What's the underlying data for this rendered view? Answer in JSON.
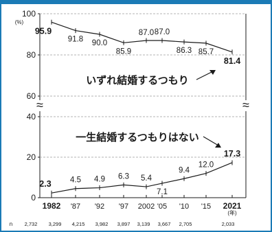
{
  "chart_data": {
    "type": "line",
    "ylabel": "(%)",
    "ylim": [
      0,
      100
    ],
    "axis_break": [
      47,
      57
    ],
    "y_ticks": [
      "0",
      "20",
      "40",
      "60",
      "80",
      "100"
    ],
    "categories": [
      "1982",
      "'87",
      "'92",
      "'97",
      "2002",
      "'05",
      "'10",
      "'15",
      "2021"
    ],
    "category_suffix_last": "(年)",
    "series": [
      {
        "name": "いずれ結婚するつもり",
        "values": [
          95.9,
          91.8,
          90.0,
          85.9,
          87.0,
          87.0,
          86.3,
          85.7,
          81.4
        ],
        "labels": [
          "95.9",
          "91.8",
          "90.0",
          "85.9",
          "87.0",
          "87.0",
          "86.3",
          "85.7",
          "81.4"
        ],
        "bold": [
          true,
          false,
          false,
          false,
          false,
          false,
          false,
          false,
          true
        ]
      },
      {
        "name": "一生結婚するつもりはない",
        "values": [
          2.3,
          4.5,
          4.9,
          6.3,
          5.4,
          7.1,
          9.4,
          12.0,
          17.3
        ],
        "labels": [
          "2.3",
          "4.5",
          "4.9",
          "6.3",
          "5.4",
          "7.1",
          "9.4",
          "12.0",
          "17.3"
        ],
        "bold": [
          true,
          false,
          false,
          false,
          false,
          false,
          false,
          false,
          true
        ]
      }
    ],
    "n_label": "n",
    "n_values": [
      "2,732",
      "3,299",
      "4,215",
      "3,982",
      "3,897",
      "3,139",
      "3,667",
      "2,705",
      "2,033"
    ],
    "break_mark": "≈",
    "grid": true,
    "colors": {
      "frame": "#1b7bb6",
      "line": "#1a1a1a",
      "grid": "#9a9a9a"
    }
  }
}
